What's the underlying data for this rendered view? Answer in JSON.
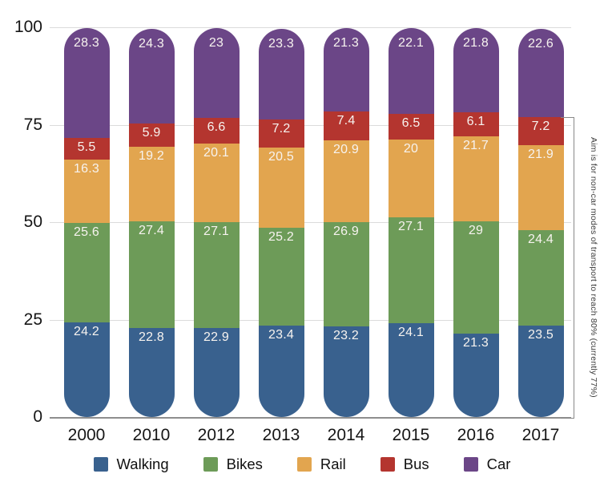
{
  "chart_data": {
    "type": "bar",
    "stacked": true,
    "title": "",
    "categories": [
      "2000",
      "2010",
      "2012",
      "2013",
      "2014",
      "2015",
      "2016",
      "2017"
    ],
    "series": [
      {
        "name": "Walking",
        "color": "#39618E",
        "values": [
          24.2,
          22.8,
          22.9,
          23.4,
          23.2,
          24.1,
          21.3,
          23.5
        ]
      },
      {
        "name": "Bikes",
        "color": "#6D9B58",
        "values": [
          25.6,
          27.4,
          27.1,
          25.2,
          26.9,
          27.1,
          29,
          24.4
        ]
      },
      {
        "name": "Rail",
        "color": "#E2A54F",
        "values": [
          16.3,
          19.2,
          20.1,
          20.5,
          20.9,
          20,
          21.7,
          21.9
        ]
      },
      {
        "name": "Bus",
        "color": "#B4352F",
        "values": [
          5.5,
          5.9,
          6.6,
          7.2,
          7.4,
          6.5,
          6.1,
          7.2
        ]
      },
      {
        "name": "Car",
        "color": "#6B4687",
        "values": [
          28.3,
          24.3,
          23,
          23.3,
          21.3,
          22.1,
          21.8,
          22.6
        ]
      }
    ],
    "y_ticks": [
      100,
      75,
      50,
      25,
      0
    ],
    "ylim": [
      0,
      100
    ],
    "grid": true,
    "legend_position": "bottom",
    "annotation": {
      "text": "Aim is for non-car modes of transport to reach 80% (currently 77%)",
      "bracket_range": [
        0,
        77
      ]
    }
  },
  "colors": {
    "background": "#ffffff",
    "gridline": "#dbdbdb",
    "axis_line": "#8e8e8e",
    "tick_text": "#161616",
    "bar_label_text": "#f7f3ef",
    "annotation_text": "#3a3a3a",
    "bracket": "#888888"
  }
}
